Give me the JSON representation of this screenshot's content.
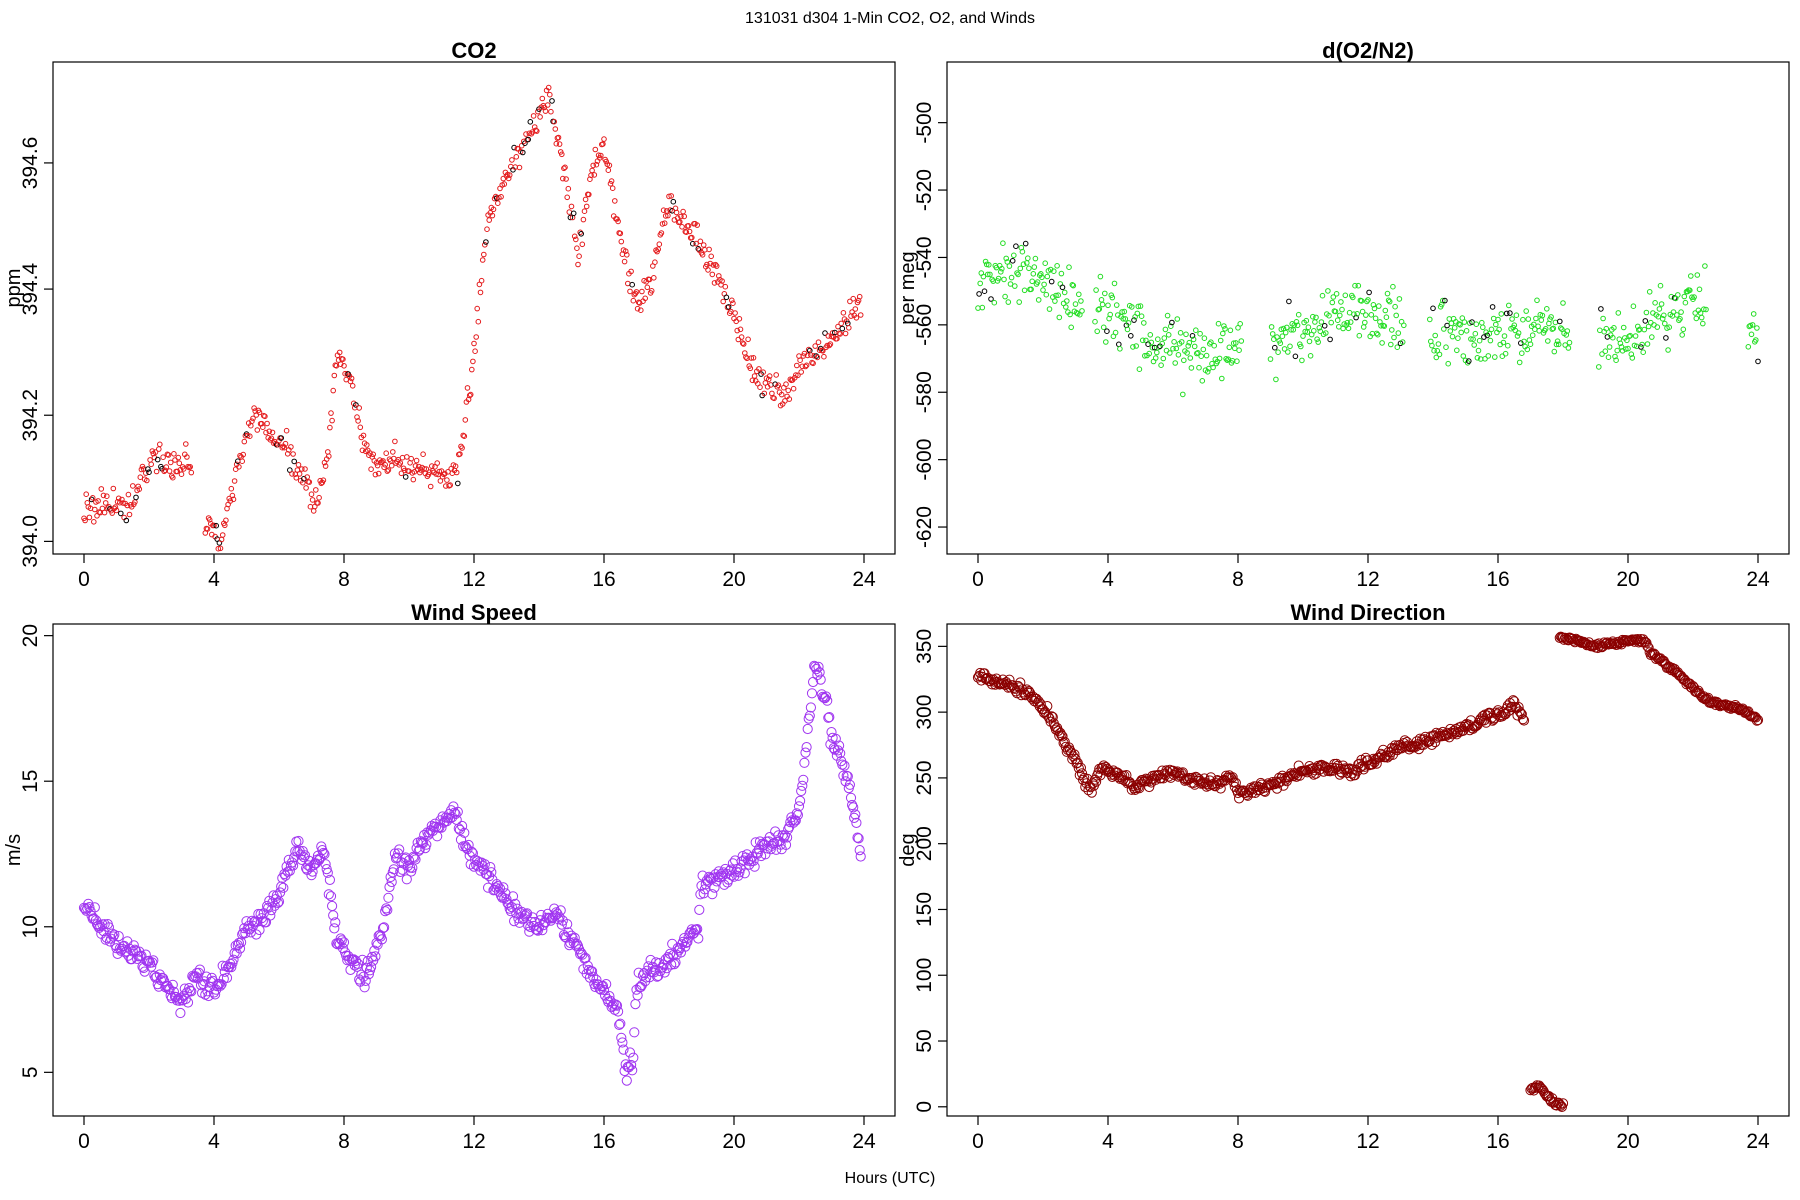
{
  "figure": {
    "suptitle": "131031   d304   1-Min CO2, O2, and Winds",
    "xlabel": "Hours (UTC)"
  },
  "chart_data": [
    {
      "type": "scatter",
      "title": "CO2",
      "xlabel": "",
      "ylabel": "ppm",
      "color": "#e41a1c",
      "marker_size": "small",
      "xlim": [
        0,
        24
      ],
      "ylim": [
        393.98,
        394.76
      ],
      "xticks": [
        0,
        4,
        8,
        12,
        16,
        20,
        24
      ],
      "yticks": [
        394.0,
        394.2,
        394.4,
        394.6
      ],
      "ytick_labels": [
        "394.0",
        "394.2",
        "394.4",
        "394.6"
      ],
      "gaps": [
        [
          3.3,
          3.7
        ]
      ],
      "anchors": [
        [
          0,
          394.05
        ],
        [
          0.5,
          394.06
        ],
        [
          1.0,
          394.06
        ],
        [
          1.4,
          394.05
        ],
        [
          1.8,
          394.1
        ],
        [
          2.3,
          394.13
        ],
        [
          2.8,
          394.12
        ],
        [
          3.3,
          394.12
        ],
        [
          3.7,
          394.03
        ],
        [
          4.2,
          394.0
        ],
        [
          4.7,
          394.12
        ],
        [
          5.2,
          394.2
        ],
        [
          5.7,
          394.17
        ],
        [
          6.2,
          394.15
        ],
        [
          6.7,
          394.1
        ],
        [
          7.2,
          394.06
        ],
        [
          7.5,
          394.15
        ],
        [
          7.8,
          394.3
        ],
        [
          8.2,
          394.25
        ],
        [
          8.6,
          394.15
        ],
        [
          9.0,
          394.12
        ],
        [
          9.5,
          394.13
        ],
        [
          10.0,
          394.12
        ],
        [
          10.5,
          394.11
        ],
        [
          11.0,
          394.1
        ],
        [
          11.5,
          394.11
        ],
        [
          12.0,
          394.3
        ],
        [
          12.4,
          394.5
        ],
        [
          12.8,
          394.55
        ],
        [
          13.3,
          394.6
        ],
        [
          13.8,
          394.65
        ],
        [
          14.3,
          394.7
        ],
        [
          14.8,
          394.58
        ],
        [
          15.2,
          394.45
        ],
        [
          15.6,
          394.58
        ],
        [
          16.0,
          394.63
        ],
        [
          16.5,
          394.48
        ],
        [
          17.0,
          394.38
        ],
        [
          17.5,
          394.42
        ],
        [
          18.0,
          394.54
        ],
        [
          18.5,
          394.5
        ],
        [
          19.0,
          394.47
        ],
        [
          19.5,
          394.42
        ],
        [
          20.0,
          394.36
        ],
        [
          20.5,
          394.28
        ],
        [
          21.0,
          394.25
        ],
        [
          21.5,
          394.23
        ],
        [
          22.0,
          394.28
        ],
        [
          22.5,
          394.3
        ],
        [
          23.2,
          394.33
        ],
        [
          23.9,
          394.38
        ]
      ],
      "jitter": 0.035,
      "points_per_hour": 30
    },
    {
      "type": "scatter",
      "title": "d(O2/N2)",
      "xlabel": "",
      "ylabel": "per meg",
      "color": "#22dd22",
      "marker_size": "small",
      "xlim": [
        0,
        24
      ],
      "ylim": [
        -628,
        -482
      ],
      "xticks": [
        0,
        4,
        8,
        12,
        16,
        20,
        24
      ],
      "yticks": [
        -620,
        -600,
        -580,
        -560,
        -540,
        -520,
        -500
      ],
      "ytick_labels": [
        "-620",
        "-600",
        "-580",
        "-560",
        "-540",
        "-520",
        "-500"
      ],
      "gaps": [
        [
          3.2,
          3.6
        ],
        [
          8.1,
          9.0
        ],
        [
          13.1,
          13.9
        ],
        [
          18.2,
          19.1
        ],
        [
          22.4,
          23.7
        ]
      ],
      "anchors": [
        [
          0,
          -548
        ],
        [
          1.0,
          -544
        ],
        [
          2.0,
          -546
        ],
        [
          3.0,
          -552
        ],
        [
          3.6,
          -555
        ],
        [
          4.5,
          -560
        ],
        [
          5.5,
          -565
        ],
        [
          6.5,
          -568
        ],
        [
          7.5,
          -568
        ],
        [
          8.1,
          -565
        ],
        [
          9.0,
          -566
        ],
        [
          10.0,
          -562
        ],
        [
          11.0,
          -558
        ],
        [
          12.0,
          -558
        ],
        [
          13.1,
          -560
        ],
        [
          13.9,
          -560
        ],
        [
          15.0,
          -563
        ],
        [
          16.0,
          -562
        ],
        [
          17.0,
          -561
        ],
        [
          18.2,
          -563
        ],
        [
          19.1,
          -565
        ],
        [
          20.0,
          -563
        ],
        [
          21.0,
          -559
        ],
        [
          22.4,
          -553
        ],
        [
          23.7,
          -562
        ],
        [
          24.0,
          -562
        ]
      ],
      "jitter": 14,
      "points_per_hour": 30
    },
    {
      "type": "scatter",
      "title": "Wind Speed",
      "xlabel": "",
      "ylabel": "m/s",
      "color": "#a035f0",
      "marker_size": "large",
      "xlim": [
        0,
        24
      ],
      "ylim": [
        3.5,
        20.4
      ],
      "xticks": [
        0,
        4,
        8,
        12,
        16,
        20,
        24
      ],
      "yticks": [
        5,
        10,
        15,
        20
      ],
      "ytick_labels": [
        "5",
        "10",
        "15",
        "20"
      ],
      "gaps": [],
      "anchors": [
        [
          0,
          10.8
        ],
        [
          0.5,
          10.0
        ],
        [
          1.0,
          9.4
        ],
        [
          1.5,
          9.0
        ],
        [
          2.0,
          8.7
        ],
        [
          2.5,
          8.0
        ],
        [
          3.0,
          7.4
        ],
        [
          3.5,
          8.2
        ],
        [
          4.0,
          7.9
        ],
        [
          4.5,
          8.6
        ],
        [
          5.0,
          10.0
        ],
        [
          5.5,
          10.2
        ],
        [
          6.0,
          11.0
        ],
        [
          6.5,
          12.7
        ],
        [
          7.0,
          12.0
        ],
        [
          7.4,
          12.6
        ],
        [
          7.8,
          9.5
        ],
        [
          8.2,
          8.8
        ],
        [
          8.7,
          8.3
        ],
        [
          9.2,
          10.0
        ],
        [
          9.6,
          12.5
        ],
        [
          10.0,
          12.0
        ],
        [
          10.5,
          13.0
        ],
        [
          11.0,
          13.5
        ],
        [
          11.4,
          14.0
        ],
        [
          11.8,
          12.5
        ],
        [
          12.4,
          11.8
        ],
        [
          12.9,
          11.0
        ],
        [
          13.4,
          10.3
        ],
        [
          14.0,
          10.0
        ],
        [
          14.5,
          10.5
        ],
        [
          15.0,
          9.5
        ],
        [
          15.5,
          8.5
        ],
        [
          16.0,
          7.8
        ],
        [
          16.4,
          7.2
        ],
        [
          16.7,
          5.0
        ],
        [
          16.9,
          5.6
        ],
        [
          17.0,
          7.9
        ],
        [
          17.5,
          8.5
        ],
        [
          18.0,
          8.8
        ],
        [
          18.5,
          9.5
        ],
        [
          18.9,
          10.0
        ],
        [
          19.0,
          11.4
        ],
        [
          19.5,
          11.6
        ],
        [
          20.0,
          12.0
        ],
        [
          20.5,
          12.3
        ],
        [
          21.0,
          12.8
        ],
        [
          21.5,
          13.0
        ],
        [
          22.0,
          14.0
        ],
        [
          22.3,
          17.0
        ],
        [
          22.5,
          19.0
        ],
        [
          22.8,
          18.0
        ],
        [
          23.0,
          16.5
        ],
        [
          23.4,
          15.5
        ],
        [
          23.7,
          14.0
        ],
        [
          23.9,
          12.2
        ]
      ],
      "jitter": 0.55,
      "points_per_hour": 30
    },
    {
      "type": "scatter",
      "title": "Wind Direction",
      "xlabel": "",
      "ylabel": "deg",
      "color": "#8b0000",
      "marker_size": "large",
      "xlim": [
        0,
        24
      ],
      "ylim": [
        -7,
        367
      ],
      "xticks": [
        0,
        4,
        8,
        12,
        16,
        20,
        24
      ],
      "yticks": [
        0,
        50,
        100,
        150,
        200,
        250,
        300,
        350
      ],
      "ytick_labels": [
        "0",
        "50",
        "100",
        "150",
        "200",
        "250",
        "300",
        "350"
      ],
      "gaps": [],
      "segments": [
        {
          "anchors": [
            [
              0,
              328
            ],
            [
              0.5,
              324
            ],
            [
              1.0,
              320
            ],
            [
              1.5,
              315
            ],
            [
              2.0,
              305
            ],
            [
              2.5,
              285
            ],
            [
              3.0,
              262
            ],
            [
              3.5,
              240
            ],
            [
              3.8,
              258
            ],
            [
              4.3,
              252
            ],
            [
              4.8,
              243
            ],
            [
              5.3,
              248
            ],
            [
              5.8,
              254
            ],
            [
              6.3,
              252
            ],
            [
              6.8,
              248
            ],
            [
              7.3,
              244
            ],
            [
              7.8,
              252
            ],
            [
              8.0,
              238
            ],
            [
              8.5,
              240
            ],
            [
              9.0,
              244
            ],
            [
              9.5,
              250
            ],
            [
              10.0,
              255
            ],
            [
              10.5,
              257
            ],
            [
              11.0,
              258
            ],
            [
              11.5,
              255
            ],
            [
              12.0,
              262
            ],
            [
              12.5,
              268
            ],
            [
              13.0,
              272
            ],
            [
              13.5,
              276
            ],
            [
              14.0,
              280
            ],
            [
              14.5,
              284
            ],
            [
              15.0,
              288
            ],
            [
              15.5,
              293
            ],
            [
              16.0,
              298
            ],
            [
              16.5,
              305
            ],
            [
              16.8,
              295
            ]
          ],
          "jitter": 7,
          "points_per_hour": 30
        },
        {
          "anchors": [
            [
              17.0,
              12
            ],
            [
              17.3,
              16
            ],
            [
              17.5,
              8
            ],
            [
              17.8,
              2
            ],
            [
              18.0,
              1
            ]
          ],
          "jitter": 3,
          "points_per_hour": 30
        },
        {
          "anchors": [
            [
              17.9,
              357
            ],
            [
              18.5,
              354
            ],
            [
              19.0,
              350
            ],
            [
              19.5,
              352
            ],
            [
              20.0,
              355
            ],
            [
              20.5,
              354
            ],
            [
              20.7,
              345
            ],
            [
              21.0,
              340
            ],
            [
              21.5,
              330
            ],
            [
              22.0,
              318
            ],
            [
              22.5,
              308
            ],
            [
              23.0,
              305
            ],
            [
              23.5,
              302
            ],
            [
              24.0,
              295
            ]
          ],
          "jitter": 3,
          "points_per_hour": 30
        }
      ]
    }
  ]
}
